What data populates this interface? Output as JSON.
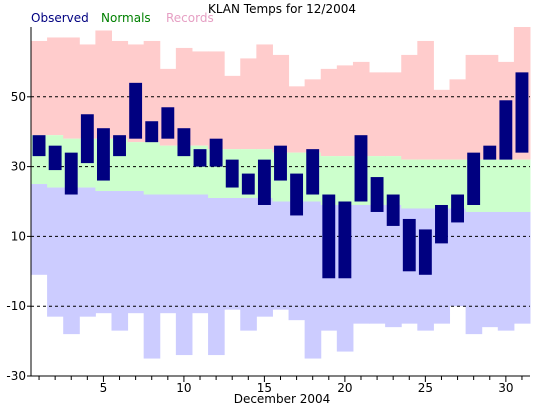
{
  "chart_data": {
    "type": "bar",
    "title": "KLAN Temps for 12/2004",
    "xlabel": "December 2004",
    "ylabel": "",
    "xlim": [
      0.5,
      31.5
    ],
    "ylim": [
      -30,
      70
    ],
    "yticks": [
      -30,
      -10,
      10,
      30,
      50
    ],
    "xticks": [
      5,
      10,
      15,
      20,
      25,
      30
    ],
    "grid": "dashed horizontal lines at -10, 10, 30, 50",
    "legend": [
      {
        "name": "Observed",
        "color": "#000080"
      },
      {
        "name": "Normals",
        "color": "#008000"
      },
      {
        "name": "Records",
        "color": "#e6a0c4"
      }
    ],
    "legend_placement": "top-left",
    "days": [
      1,
      2,
      3,
      4,
      5,
      6,
      7,
      8,
      9,
      10,
      11,
      12,
      13,
      14,
      15,
      16,
      17,
      18,
      19,
      20,
      21,
      22,
      23,
      24,
      25,
      26,
      27,
      28,
      29,
      30,
      31
    ],
    "records": {
      "color": "#ffcccc",
      "low_color": "#ccccff",
      "high": [
        66,
        67,
        67,
        65,
        69,
        66,
        65,
        66,
        58,
        64,
        63,
        63,
        56,
        61,
        65,
        62,
        53,
        55,
        58,
        59,
        60,
        57,
        57,
        62,
        66,
        52,
        55,
        62,
        62,
        60,
        70
      ],
      "low": [
        -1,
        -13,
        -18,
        -13,
        -12,
        -17,
        -12,
        -25,
        -12,
        -24,
        -12,
        -24,
        -11,
        -17,
        -13,
        -11,
        -14,
        -25,
        -17,
        -23,
        -15,
        -15,
        -16,
        -15,
        -17,
        -15,
        -10,
        -18,
        -16,
        -17,
        -15
      ]
    },
    "normals": {
      "color": "#ccffcc",
      "high": [
        39,
        39,
        38,
        38,
        38,
        38,
        37,
        37,
        36,
        36,
        36,
        35,
        35,
        35,
        35,
        34,
        34,
        34,
        33,
        33,
        33,
        33,
        33,
        32,
        32,
        32,
        32,
        32,
        32,
        32,
        32
      ],
      "low": [
        25,
        24,
        24,
        24,
        23,
        23,
        23,
        22,
        22,
        22,
        22,
        21,
        21,
        21,
        21,
        20,
        20,
        20,
        19,
        19,
        19,
        19,
        19,
        18,
        18,
        18,
        18,
        17,
        17,
        17,
        17
      ]
    },
    "series": [
      {
        "name": "Observed",
        "color": "#000080",
        "high": [
          39,
          36,
          34,
          45,
          41,
          39,
          54,
          43,
          47,
          41,
          35,
          38,
          32,
          28,
          32,
          36,
          28,
          35,
          22,
          20,
          39,
          27,
          22,
          15,
          12,
          19,
          22,
          34,
          36,
          49,
          57
        ],
        "low": [
          33,
          29,
          22,
          31,
          26,
          33,
          38,
          37,
          38,
          33,
          30,
          30,
          24,
          22,
          19,
          26,
          16,
          22,
          -2,
          -2,
          20,
          17,
          13,
          0,
          -1,
          8,
          14,
          19,
          32,
          32,
          34
        ]
      }
    ]
  }
}
